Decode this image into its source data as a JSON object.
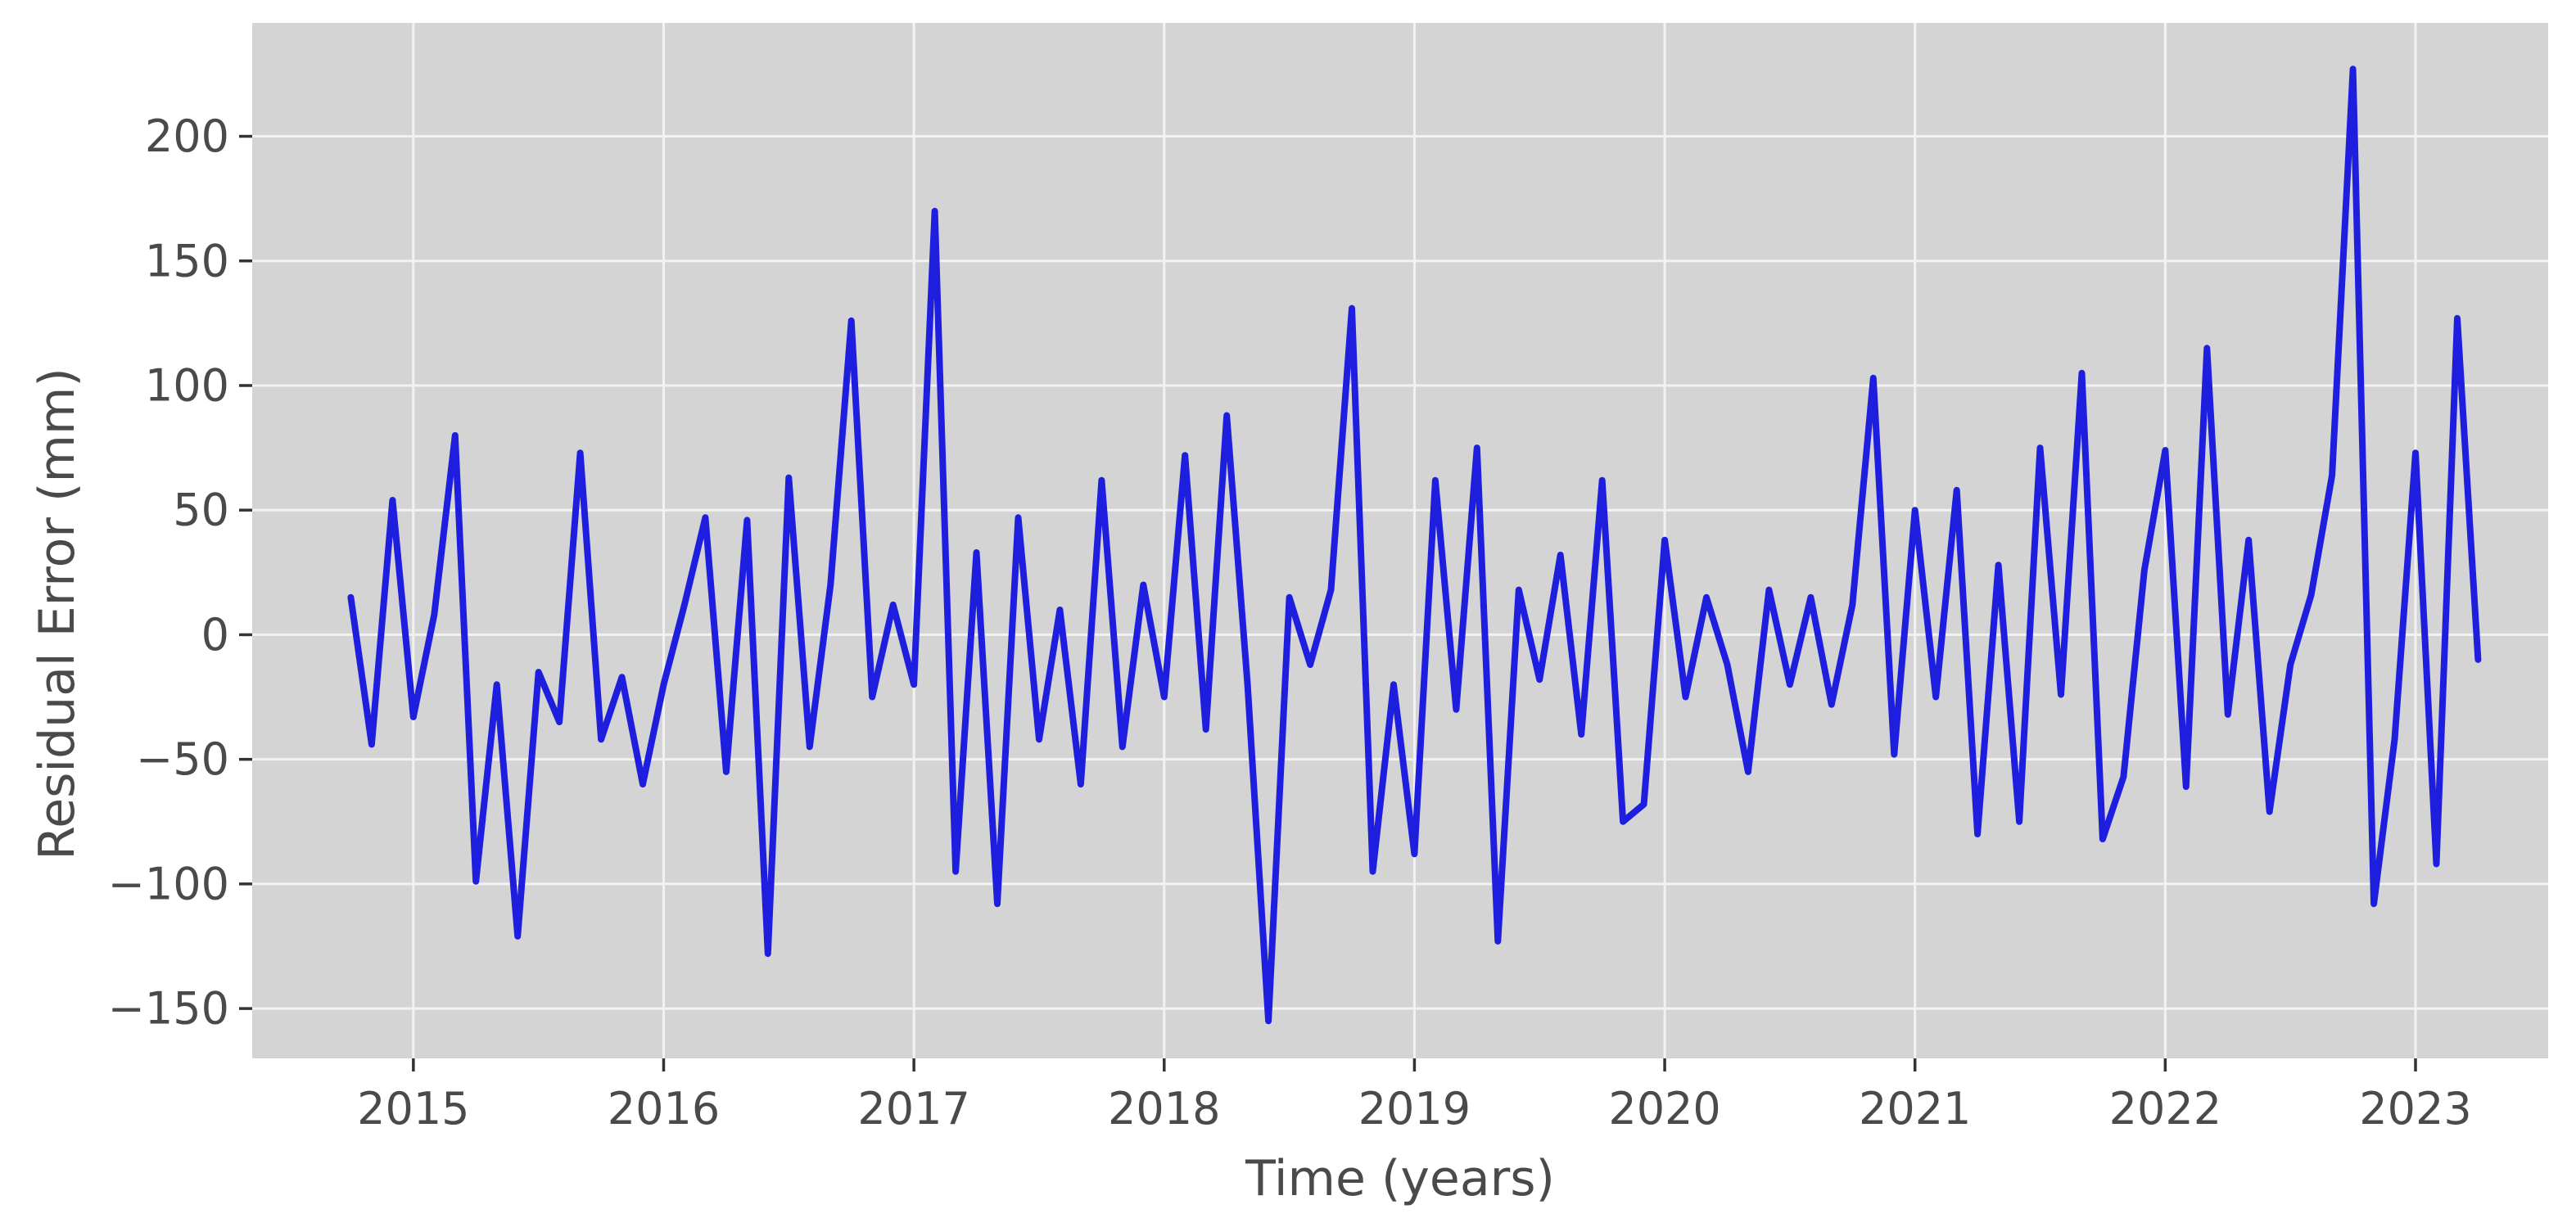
{
  "figure": {
    "background_color": "#ffffff"
  },
  "chart_data": {
    "type": "line",
    "title": "",
    "xlabel": "Time (years)",
    "ylabel": "Residual Error (mm)",
    "series": [
      {
        "name": "residual-error",
        "color": "#1e1ede",
        "x": [
          2014.75,
          2014.8333,
          2014.9167,
          2015.0,
          2015.0833,
          2015.1667,
          2015.25,
          2015.3333,
          2015.4167,
          2015.5,
          2015.5833,
          2015.6667,
          2015.75,
          2015.8333,
          2015.9167,
          2016.0,
          2016.0833,
          2016.1667,
          2016.25,
          2016.3333,
          2016.4167,
          2016.5,
          2016.5833,
          2016.6667,
          2016.75,
          2016.8333,
          2016.9167,
          2017.0,
          2017.0833,
          2017.1667,
          2017.25,
          2017.3333,
          2017.4167,
          2017.5,
          2017.5833,
          2017.6667,
          2017.75,
          2017.8333,
          2017.9167,
          2018.0,
          2018.0833,
          2018.1667,
          2018.25,
          2018.3333,
          2018.4167,
          2018.5,
          2018.5833,
          2018.6667,
          2018.75,
          2018.8333,
          2018.9167,
          2019.0,
          2019.0833,
          2019.1667,
          2019.25,
          2019.3333,
          2019.4167,
          2019.5,
          2019.5833,
          2019.6667,
          2019.75,
          2019.8333,
          2019.9167,
          2020.0,
          2020.0833,
          2020.1667,
          2020.25,
          2020.3333,
          2020.4167,
          2020.5,
          2020.5833,
          2020.6667,
          2020.75,
          2020.8333,
          2020.9167,
          2021.0,
          2021.0833,
          2021.1667,
          2021.25,
          2021.3333,
          2021.4167,
          2021.5,
          2021.5833,
          2021.6667,
          2021.75,
          2021.8333,
          2021.9167,
          2022.0,
          2022.0833,
          2022.1667,
          2022.25,
          2022.3333,
          2022.4167,
          2022.5,
          2022.5833,
          2022.6667,
          2022.75,
          2022.8333,
          2022.9167,
          2023.0,
          2023.0833,
          2023.1667,
          2023.25
        ],
        "y": [
          15,
          -44,
          54,
          -33,
          8,
          80,
          -99,
          -20,
          -121,
          -15,
          -35,
          73,
          -42,
          -17,
          -60,
          -20,
          12,
          47,
          -55,
          46,
          -128,
          63,
          -45,
          20,
          126,
          -25,
          12,
          -20,
          170,
          -95,
          33,
          -108,
          47,
          -42,
          10,
          -60,
          62,
          -45,
          20,
          -25,
          72,
          -38,
          88,
          -20,
          -155,
          15,
          -12,
          18,
          131,
          -95,
          -20,
          -88,
          62,
          -30,
          75,
          -123,
          18,
          -18,
          32,
          -40,
          62,
          -75,
          -68,
          38,
          -25,
          15,
          -12,
          -55,
          18,
          -20,
          15,
          -28,
          12,
          103,
          -48,
          50,
          -25,
          58,
          -80,
          28,
          -75,
          75,
          -24,
          105,
          -82,
          -57,
          26,
          74,
          -61,
          115,
          -32,
          38,
          -71,
          -12,
          16,
          64,
          227,
          -108,
          -42,
          73,
          -92,
          127,
          -10
        ]
      }
    ],
    "xlim": [
      2014.356,
      2023.53
    ],
    "ylim": [
      -170,
      245.5
    ],
    "xticks": [
      2015,
      2016,
      2017,
      2018,
      2019,
      2020,
      2021,
      2022,
      2023
    ],
    "xtick_labels": [
      "2015",
      "2016",
      "2017",
      "2018",
      "2019",
      "2020",
      "2021",
      "2022",
      "2023"
    ],
    "yticks": [
      200,
      150,
      100,
      50,
      0,
      -50,
      -100,
      -150
    ],
    "ytick_labels": [
      "200",
      "150",
      "100",
      "50",
      "0",
      "−50",
      "−100",
      "−150"
    ],
    "grid": true,
    "legend": null,
    "style": {
      "plot_background": "#d4d4d4",
      "grid_color": "#f2f2f2",
      "tick_mark_color": "#333333",
      "tick_label_color": "#4a4a4a",
      "axis_label_color": "#4a4a4a",
      "line_width": 8
    }
  }
}
